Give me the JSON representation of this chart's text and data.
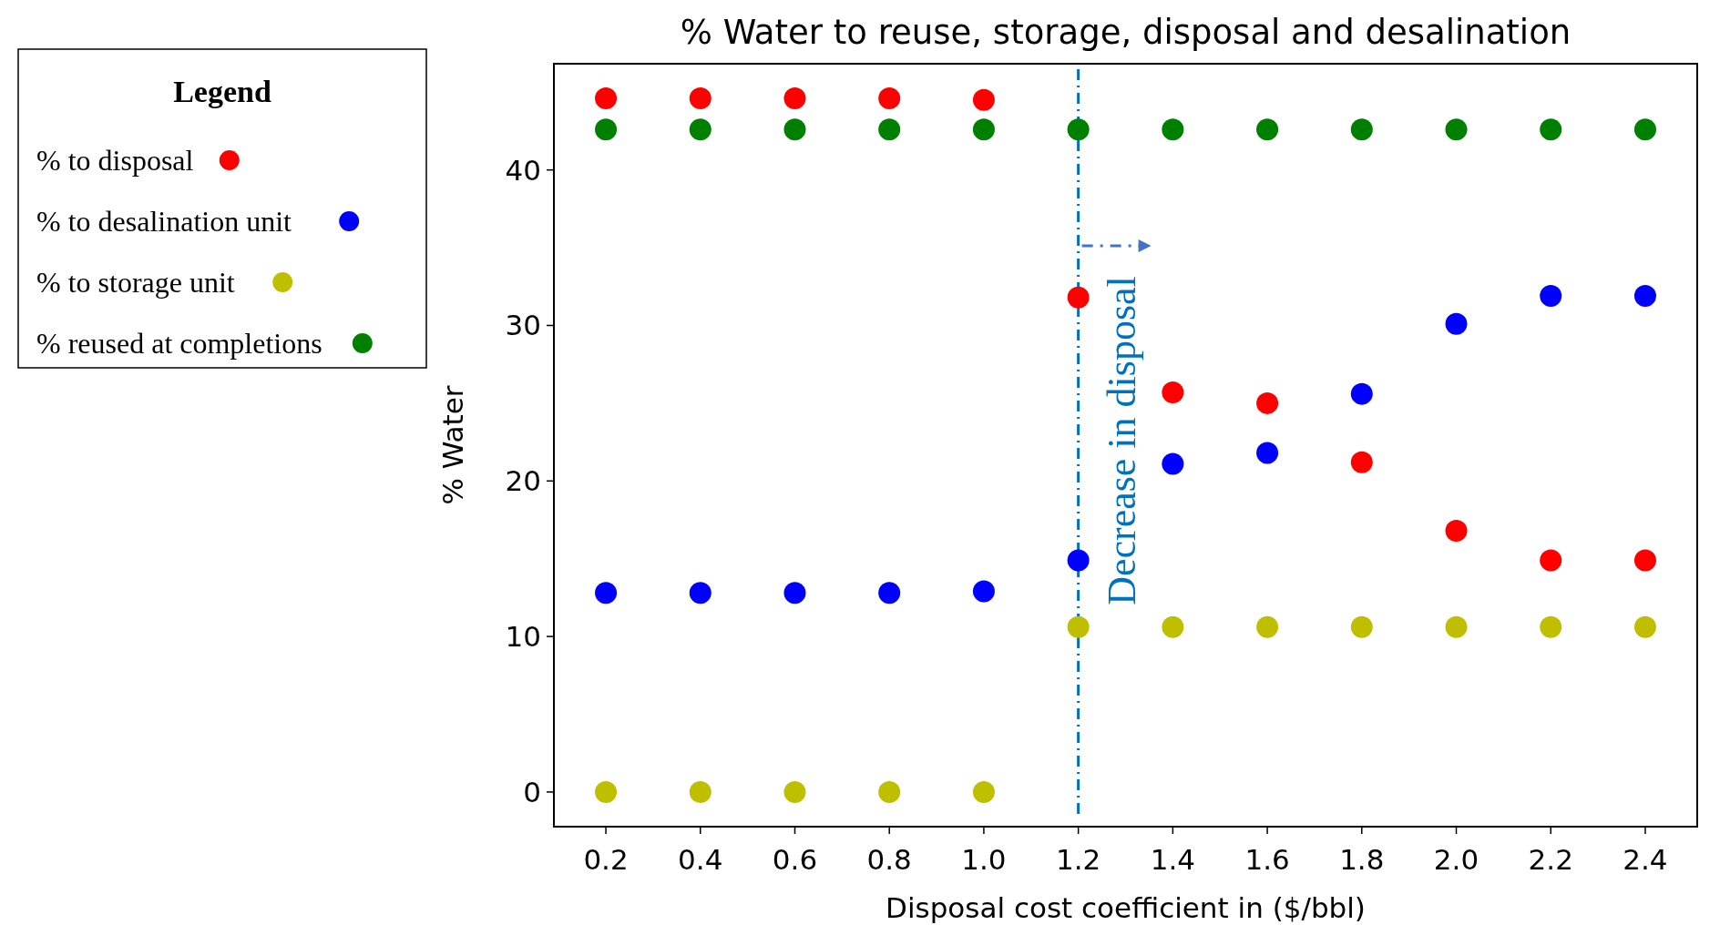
{
  "chart_data": {
    "type": "scatter",
    "title": "% Water to reuse, storage, disposal and desalination",
    "xlabel": "Disposal cost coefficient in ($/bbl)",
    "ylabel": "% Water",
    "legend_title": "Legend",
    "x": [
      0.2,
      0.4,
      0.6,
      0.8,
      1.0,
      1.2,
      1.4,
      1.6,
      1.8,
      2.0,
      2.2,
      2.4
    ],
    "series": [
      {
        "name": "% to disposal",
        "color": "#ff0000",
        "values": [
          44.6,
          44.6,
          44.6,
          44.6,
          44.5,
          31.8,
          25.7,
          25.0,
          21.2,
          16.8,
          14.9,
          14.9
        ]
      },
      {
        "name": "% to desalination unit",
        "color": "#0000ff",
        "values": [
          12.8,
          12.8,
          12.8,
          12.8,
          12.9,
          14.9,
          21.1,
          21.8,
          25.6,
          30.1,
          31.9,
          31.9
        ]
      },
      {
        "name": "% to storage unit",
        "color": "#bfbf00",
        "values": [
          0,
          0,
          0,
          0,
          0,
          10.6,
          10.6,
          10.6,
          10.6,
          10.6,
          10.6,
          10.6
        ]
      },
      {
        "name": "% reused at completions",
        "color": "#008000",
        "values": [
          42.6,
          42.6,
          42.6,
          42.6,
          42.6,
          42.6,
          42.6,
          42.6,
          42.6,
          42.6,
          42.6,
          42.6
        ]
      }
    ],
    "xlim": [
      0.09,
      2.51
    ],
    "ylim": [
      -2.23,
      46.83
    ],
    "xticks": [
      {
        "value": 0.2,
        "label": "0.2"
      },
      {
        "value": 0.4,
        "label": "0.4"
      },
      {
        "value": 0.6,
        "label": "0.6"
      },
      {
        "value": 0.8,
        "label": "0.8"
      },
      {
        "value": 1.0,
        "label": "1.0"
      },
      {
        "value": 1.2,
        "label": "1.2"
      },
      {
        "value": 1.4,
        "label": "1.4"
      },
      {
        "value": 1.6,
        "label": "1.6"
      },
      {
        "value": 1.8,
        "label": "1.8"
      },
      {
        "value": 2.0,
        "label": "2.0"
      },
      {
        "value": 2.2,
        "label": "2.2"
      },
      {
        "value": 2.4,
        "label": "2.4"
      }
    ],
    "yticks": [
      0,
      10,
      20,
      30,
      40
    ],
    "ref_lines": [
      {
        "axis": "x",
        "value": 1.2,
        "color": "#0072bd",
        "line_style": "dashed"
      }
    ],
    "annotations": [
      "Decrease in disposal"
    ],
    "marker": "circle",
    "legend": "left",
    "grid": false
  }
}
